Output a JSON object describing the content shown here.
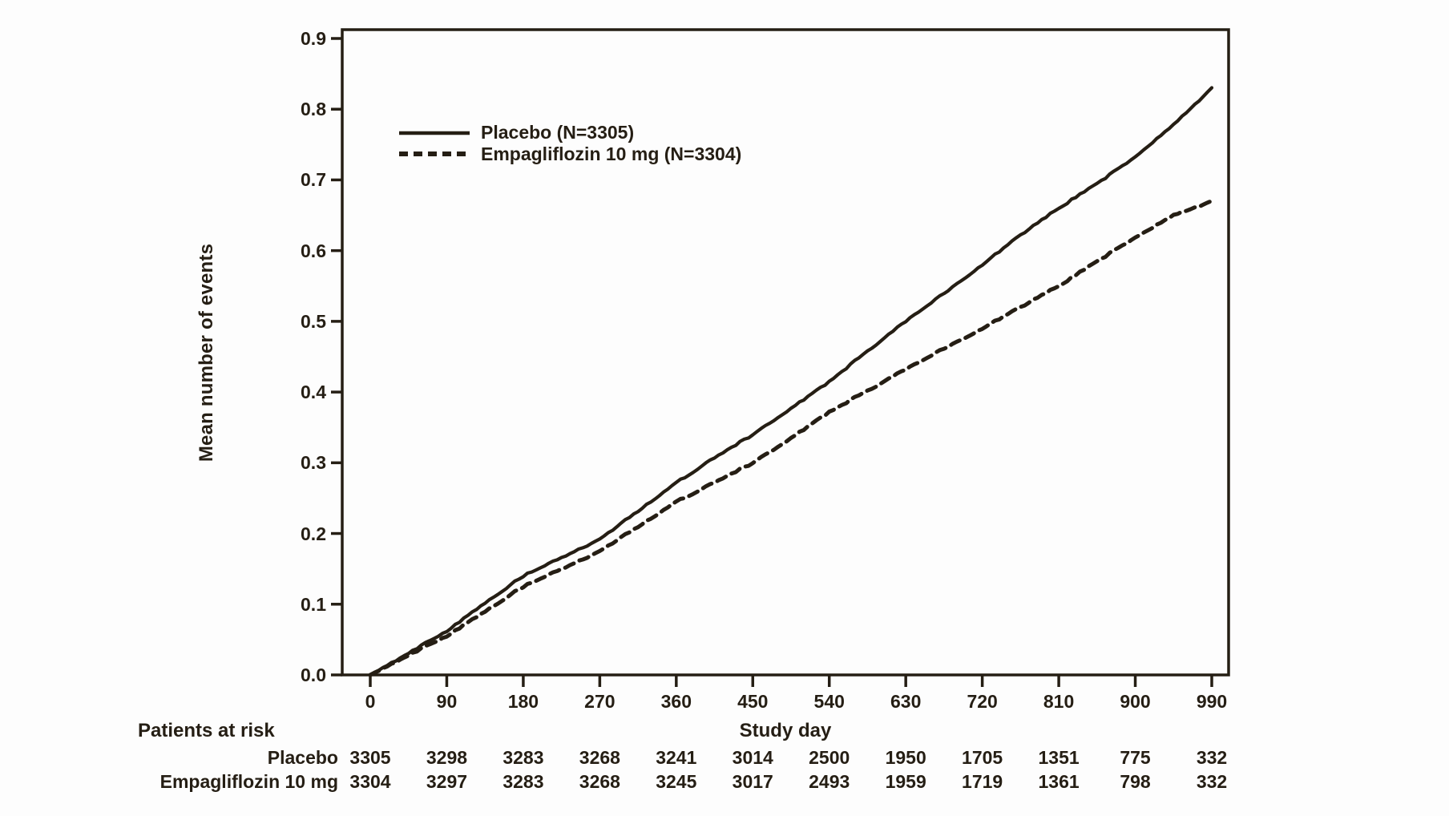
{
  "chart_data": {
    "type": "line",
    "title": "",
    "xlabel": "Study day",
    "ylabel": "Mean number of events",
    "xlim": [
      0,
      990
    ],
    "ylim": [
      0.0,
      0.9
    ],
    "grid": false,
    "legend_position": "inside-top-left",
    "x_ticks": [
      "0",
      "90",
      "180",
      "270",
      "360",
      "450",
      "540",
      "630",
      "720",
      "810",
      "900",
      "990"
    ],
    "y_ticks": [
      "0.0",
      "0.1",
      "0.2",
      "0.3",
      "0.4",
      "0.5",
      "0.6",
      "0.7",
      "0.8",
      "0.9"
    ],
    "x_sample_days": [
      0,
      45,
      90,
      135,
      180,
      225,
      270,
      315,
      360,
      405,
      450,
      495,
      540,
      585,
      630,
      675,
      720,
      765,
      810,
      855,
      900,
      945,
      990
    ],
    "series": [
      {
        "name": "Placebo (N=3305)",
        "style": "solid",
        "values": [
          0,
          0.031,
          0.062,
          0.102,
          0.14,
          0.166,
          0.192,
          0.232,
          0.272,
          0.307,
          0.34,
          0.377,
          0.415,
          0.458,
          0.5,
          0.54,
          0.58,
          0.622,
          0.66,
          0.695,
          0.732,
          0.778,
          0.83
        ]
      },
      {
        "name": "Empagliflozin 10 mg (N=3304)",
        "style": "dashed",
        "values": [
          0,
          0.028,
          0.055,
          0.09,
          0.125,
          0.15,
          0.175,
          0.21,
          0.245,
          0.272,
          0.3,
          0.335,
          0.372,
          0.402,
          0.432,
          0.462,
          0.49,
          0.52,
          0.55,
          0.585,
          0.618,
          0.65,
          0.67
        ]
      }
    ],
    "patients_at_risk": {
      "label": "Patients at risk",
      "rows": [
        {
          "name": "Placebo",
          "counts": [
            "3305",
            "3298",
            "3283",
            "3268",
            "3241",
            "3014",
            "2500",
            "1950",
            "1705",
            "1351",
            "775",
            "332"
          ]
        },
        {
          "name": "Empagliflozin 10 mg",
          "counts": [
            "3304",
            "3297",
            "3283",
            "3268",
            "3245",
            "3017",
            "2493",
            "1959",
            "1719",
            "1361",
            "798",
            "332"
          ]
        }
      ]
    },
    "colors": {
      "ink": "#251e14",
      "background": "#fdfdfd"
    }
  }
}
